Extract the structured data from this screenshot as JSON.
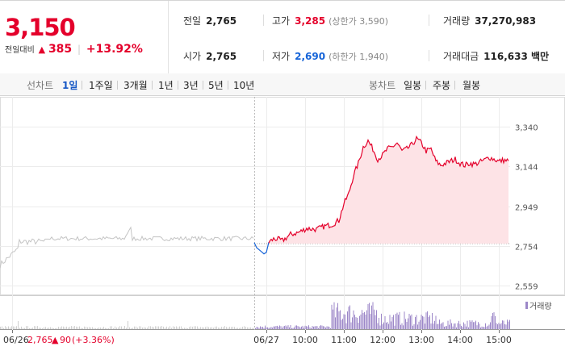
{
  "quote": {
    "price": "3,150",
    "change_label": "전일대비",
    "change_arrow": "▲",
    "change_value": "385",
    "change_rate": "+13.92%",
    "prev_close": {
      "label": "전일",
      "value": "2,765"
    },
    "open": {
      "label": "시가",
      "value": "2,765"
    },
    "high": {
      "label": "고가",
      "value": "3,285",
      "sub": "(상한가 3,590)"
    },
    "low": {
      "label": "저가",
      "value": "2,690",
      "sub": "(하한가 1,940)"
    },
    "volume": {
      "label": "거래량",
      "value": "37,270,983"
    },
    "amount": {
      "label": "거래대금",
      "value": "116,633 백만"
    }
  },
  "tabs": {
    "line_label": "선차트",
    "line_items": [
      "1일",
      "1주일",
      "3개월",
      "1년",
      "3년",
      "5년",
      "10년"
    ],
    "active_line": "1일",
    "candle_label": "봉차트",
    "candle_items": [
      "일봉",
      "주봉",
      "월봉"
    ]
  },
  "chart_data": {
    "type": "line",
    "y_ticks": [
      "3,340",
      "3,144",
      "2,949",
      "2,754",
      "2,559"
    ],
    "y_tick_values": [
      3340,
      3144,
      2949,
      2754,
      2559
    ],
    "ylim": [
      2559,
      3340
    ],
    "reference_price": 2765,
    "x_ticks": [
      "06/26",
      "06/27",
      "10:00",
      "11:00",
      "12:00",
      "13:00",
      "14:00",
      "15:00"
    ],
    "volume_legend": "거래량",
    "prev_day_info": {
      "date": "06/26",
      "close": "2,765",
      "arrow": "▲",
      "change": "90",
      "rate": "(+3.36%)"
    },
    "colors": {
      "up": "#e4002b",
      "down": "#1664d8",
      "prev": "#c4c4c4",
      "fill": "#fde3e6",
      "volume": "#9c87c8",
      "grid": "#ececec"
    }
  }
}
